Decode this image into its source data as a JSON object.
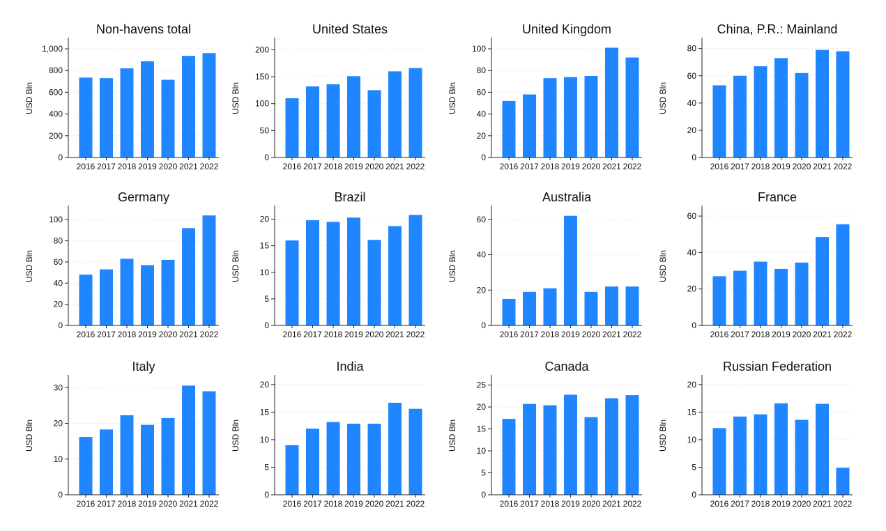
{
  "chart_data": [
    {
      "type": "bar",
      "title": "Non-havens total",
      "ylabel": "USD Bln",
      "categories": [
        "2016",
        "2017",
        "2018",
        "2019",
        "2020",
        "2021",
        "2022"
      ],
      "values": [
        735,
        730,
        820,
        885,
        715,
        935,
        960
      ],
      "yticks": [
        0,
        200,
        400,
        600,
        800,
        1000
      ],
      "ytick_labels": [
        "0",
        "200",
        "400",
        "600",
        "800",
        "1,000"
      ],
      "ylim": [
        0,
        1090
      ],
      "color": "#1f86ff"
    },
    {
      "type": "bar",
      "title": "United States",
      "ylabel": "USD Bln",
      "categories": [
        "2016",
        "2017",
        "2018",
        "2019",
        "2020",
        "2021",
        "2022"
      ],
      "values": [
        110,
        132,
        136,
        151,
        125,
        160,
        166
      ],
      "yticks": [
        0,
        50,
        100,
        150,
        200
      ],
      "ytick_labels": [
        "0",
        "50",
        "100",
        "150",
        "200"
      ],
      "ylim": [
        0,
        220
      ],
      "color": "#1f86ff"
    },
    {
      "type": "bar",
      "title": "United Kingdom",
      "ylabel": "USD Bln",
      "categories": [
        "2016",
        "2017",
        "2018",
        "2019",
        "2020",
        "2021",
        "2022"
      ],
      "values": [
        52,
        58,
        73,
        74,
        75,
        101,
        92
      ],
      "yticks": [
        0,
        20,
        40,
        60,
        80,
        100
      ],
      "ytick_labels": [
        "0",
        "20",
        "40",
        "60",
        "80",
        "100"
      ],
      "ylim": [
        0,
        109
      ],
      "color": "#1f86ff"
    },
    {
      "type": "bar",
      "title": "China, P.R.: Mainland",
      "ylabel": "USD Bln",
      "categories": [
        "2016",
        "2017",
        "2018",
        "2019",
        "2020",
        "2021",
        "2022"
      ],
      "values": [
        53,
        60,
        67,
        73,
        62,
        79,
        78
      ],
      "yticks": [
        0,
        20,
        40,
        60,
        80
      ],
      "ytick_labels": [
        "0",
        "20",
        "40",
        "60",
        "80"
      ],
      "ylim": [
        0,
        87
      ],
      "color": "#1f86ff"
    },
    {
      "type": "bar",
      "title": "Germany",
      "ylabel": "USD Bln",
      "categories": [
        "2016",
        "2017",
        "2018",
        "2019",
        "2020",
        "2021",
        "2022"
      ],
      "values": [
        48,
        53,
        63,
        57,
        62,
        92,
        104
      ],
      "yticks": [
        0,
        20,
        40,
        60,
        80,
        100
      ],
      "ytick_labels": [
        "0",
        "20",
        "40",
        "60",
        "80",
        "100"
      ],
      "ylim": [
        0,
        112
      ],
      "color": "#1f86ff"
    },
    {
      "type": "bar",
      "title": "Brazil",
      "ylabel": "USD Bln",
      "categories": [
        "2016",
        "2017",
        "2018",
        "2019",
        "2020",
        "2021",
        "2022"
      ],
      "values": [
        16.0,
        19.8,
        19.5,
        20.3,
        16.1,
        18.7,
        20.8
      ],
      "yticks": [
        0,
        5,
        10,
        15,
        20
      ],
      "ytick_labels": [
        "0",
        "5",
        "10",
        "15",
        "20"
      ],
      "ylim": [
        0,
        22.3
      ],
      "color": "#1f86ff"
    },
    {
      "type": "bar",
      "title": "Australia",
      "ylabel": "USD Bln",
      "categories": [
        "2016",
        "2017",
        "2018",
        "2019",
        "2020",
        "2021",
        "2022"
      ],
      "values": [
        15,
        19,
        21,
        62,
        19,
        22,
        22
      ],
      "yticks": [
        0,
        20,
        40,
        60
      ],
      "ytick_labels": [
        "0",
        "20",
        "40",
        "60"
      ],
      "ylim": [
        0,
        67
      ],
      "color": "#1f86ff"
    },
    {
      "type": "bar",
      "title": "France",
      "ylabel": "USD Bln",
      "categories": [
        "2016",
        "2017",
        "2018",
        "2019",
        "2020",
        "2021",
        "2022"
      ],
      "values": [
        27,
        30,
        35,
        31,
        34.5,
        48.5,
        55.5
      ],
      "yticks": [
        0,
        20,
        40,
        60
      ],
      "ytick_labels": [
        "0",
        "20",
        "40",
        "60"
      ],
      "ylim": [
        0,
        65
      ],
      "color": "#1f86ff"
    },
    {
      "type": "bar",
      "title": "Italy",
      "ylabel": "USD Bln",
      "categories": [
        "2016",
        "2017",
        "2018",
        "2019",
        "2020",
        "2021",
        "2022"
      ],
      "values": [
        16.2,
        18.3,
        22.3,
        19.6,
        21.5,
        30.6,
        29.0
      ],
      "yticks": [
        0,
        10,
        20,
        30
      ],
      "ytick_labels": [
        "0",
        "10",
        "20",
        "30"
      ],
      "ylim": [
        0,
        33.2
      ],
      "color": "#1f86ff"
    },
    {
      "type": "bar",
      "title": "India",
      "ylabel": "USD Bln",
      "categories": [
        "2016",
        "2017",
        "2018",
        "2019",
        "2020",
        "2021",
        "2022"
      ],
      "values": [
        9.0,
        12.0,
        13.2,
        12.9,
        12.9,
        16.7,
        15.6
      ],
      "yticks": [
        0,
        5,
        10,
        15,
        20
      ],
      "ytick_labels": [
        "0",
        "5",
        "10",
        "15",
        "20"
      ],
      "ylim": [
        0,
        21.5
      ],
      "color": "#1f86ff"
    },
    {
      "type": "bar",
      "title": "Canada",
      "ylabel": "USD Bln",
      "categories": [
        "2016",
        "2017",
        "2018",
        "2019",
        "2020",
        "2021",
        "2022"
      ],
      "values": [
        17.3,
        20.7,
        20.4,
        22.8,
        17.7,
        22.0,
        22.7
      ],
      "yticks": [
        0,
        5,
        10,
        15,
        20,
        25
      ],
      "ytick_labels": [
        "0",
        "5",
        "10",
        "15",
        "20",
        "25"
      ],
      "ylim": [
        0,
        27
      ],
      "color": "#1f86ff"
    },
    {
      "type": "bar",
      "title": "Russian Federation",
      "ylabel": "USD Bln",
      "categories": [
        "2016",
        "2017",
        "2018",
        "2019",
        "2020",
        "2021",
        "2022"
      ],
      "values": [
        12.1,
        14.2,
        14.6,
        16.6,
        13.6,
        16.5,
        4.9
      ],
      "yticks": [
        0,
        5,
        10,
        15,
        20
      ],
      "ytick_labels": [
        "0",
        "5",
        "10",
        "15",
        "20"
      ],
      "ylim": [
        0,
        21.5
      ],
      "color": "#1f86ff"
    }
  ]
}
